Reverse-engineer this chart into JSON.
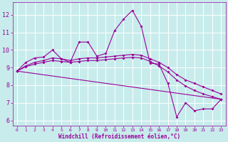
{
  "xlabel": "Windchill (Refroidissement éolien,°C)",
  "background_color": "#c8ecec",
  "grid_color": "#ffffff",
  "line_color": "#990099",
  "xlim": [
    -0.5,
    23.5
  ],
  "ylim": [
    5.7,
    12.7
  ],
  "yticks": [
    6,
    7,
    8,
    9,
    10,
    11,
    12
  ],
  "xticks": [
    0,
    1,
    2,
    3,
    4,
    5,
    6,
    7,
    8,
    9,
    10,
    11,
    12,
    13,
    14,
    15,
    16,
    17,
    18,
    19,
    20,
    21,
    22,
    23
  ],
  "series1_x": [
    0,
    1,
    2,
    3,
    4,
    5,
    6,
    7,
    8,
    9,
    10,
    11,
    12,
    13,
    14,
    15,
    16,
    17,
    18,
    19,
    20,
    21,
    22,
    23
  ],
  "series1_y": [
    8.8,
    9.3,
    9.55,
    9.6,
    10.0,
    9.5,
    9.3,
    10.45,
    10.45,
    9.65,
    9.8,
    11.1,
    11.75,
    12.25,
    11.35,
    9.25,
    9.2,
    8.1,
    6.2,
    7.0,
    6.55,
    6.65,
    6.65,
    7.2
  ],
  "series2_x": [
    0,
    1,
    2,
    3,
    4,
    5,
    6,
    7,
    8,
    9,
    10,
    11,
    12,
    13,
    14,
    15,
    16,
    17,
    18,
    19,
    20,
    21,
    22,
    23
  ],
  "series2_y": [
    8.8,
    9.1,
    9.3,
    9.4,
    9.55,
    9.5,
    9.4,
    9.5,
    9.55,
    9.55,
    9.6,
    9.65,
    9.7,
    9.75,
    9.7,
    9.5,
    9.3,
    9.0,
    8.6,
    8.3,
    8.1,
    7.9,
    7.7,
    7.5
  ],
  "series3_x": [
    0,
    23
  ],
  "series3_y": [
    8.8,
    7.2
  ],
  "series4_x": [
    0,
    1,
    2,
    3,
    4,
    5,
    6,
    7,
    8,
    9,
    10,
    11,
    12,
    13,
    14,
    15,
    16,
    17,
    18,
    19,
    20,
    21,
    22,
    23
  ],
  "series4_y": [
    8.8,
    9.05,
    9.2,
    9.3,
    9.4,
    9.35,
    9.3,
    9.35,
    9.4,
    9.4,
    9.45,
    9.5,
    9.55,
    9.58,
    9.55,
    9.35,
    9.1,
    8.75,
    8.3,
    7.95,
    7.7,
    7.5,
    7.35,
    7.2
  ]
}
